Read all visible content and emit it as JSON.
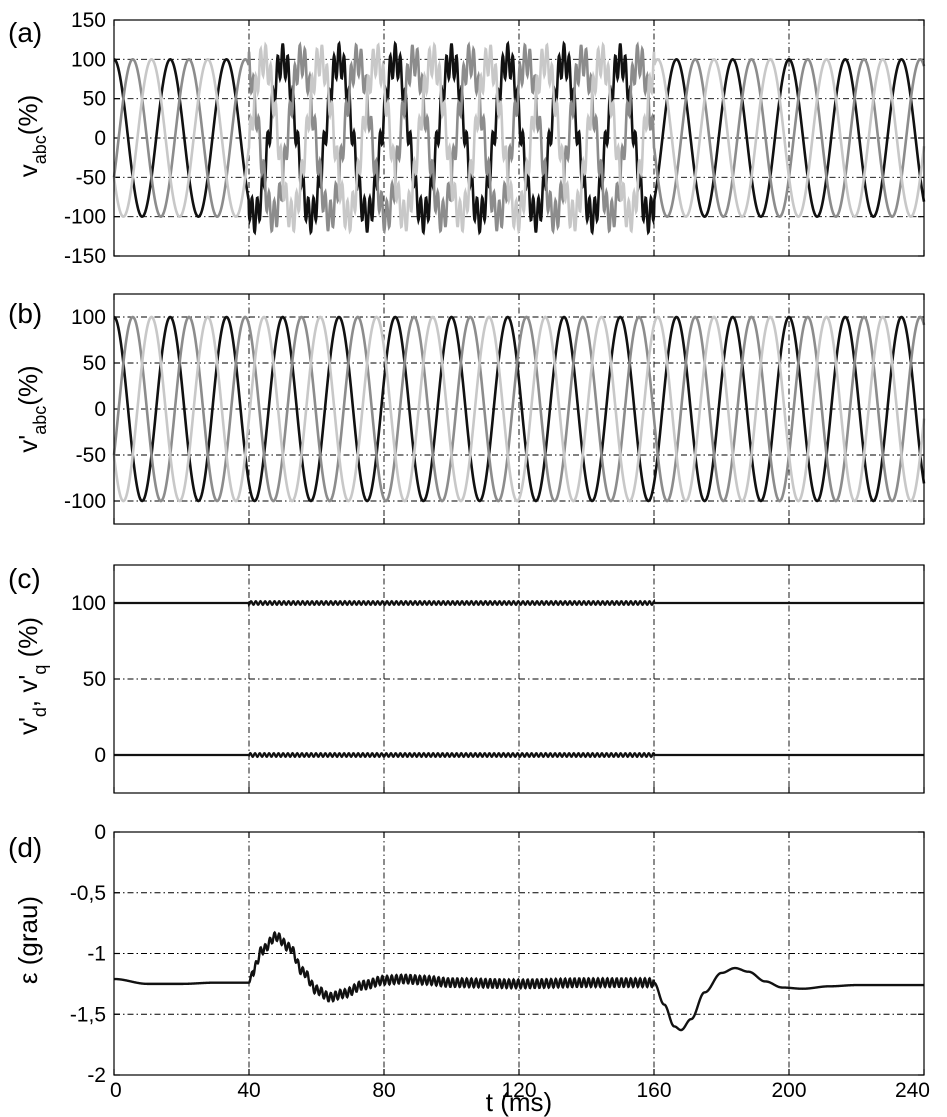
{
  "chart_data": [
    {
      "panel": "(a)",
      "type": "line",
      "ylabel_main": "v",
      "ylabel_sub": "abc",
      "ylabel_suffix": "(%)",
      "xlim": [
        0,
        240
      ],
      "ylim": [
        -150,
        150
      ],
      "yticks": [
        -150,
        -100,
        -50,
        0,
        50,
        100,
        150
      ],
      "ytick_labels": [
        "-150",
        "-100",
        "-50",
        "0",
        "50",
        "100",
        "150"
      ],
      "xticks": [
        0,
        40,
        80,
        120,
        160,
        200,
        240
      ],
      "grid": true,
      "frequency_hz": 60,
      "amplitude_pct": 100,
      "disturbance_interval_ms": [
        40,
        160
      ],
      "disturbance_harmonic_order": 11,
      "disturbance_harmonic_amplitude_pct": 20,
      "series": [
        {
          "phase_deg": 90,
          "color": "#111111"
        },
        {
          "phase_deg": -30,
          "color": "#8c8c8c"
        },
        {
          "phase_deg": 210,
          "color": "#c8c8c8"
        }
      ]
    },
    {
      "panel": "(b)",
      "type": "line",
      "ylabel_main": "v'",
      "ylabel_sub": "abc",
      "ylabel_suffix": "(%)",
      "xlim": [
        0,
        240
      ],
      "ylim": [
        -125,
        125
      ],
      "yticks": [
        -100,
        -50,
        0,
        50,
        100
      ],
      "ytick_labels": [
        "-100",
        "-50",
        "0",
        "50",
        "100"
      ],
      "xticks": [
        0,
        40,
        80,
        120,
        160,
        200,
        240
      ],
      "grid": true,
      "frequency_hz": 60,
      "amplitude_pct": 100,
      "series": [
        {
          "phase_deg": 90,
          "color": "#111111"
        },
        {
          "phase_deg": -30,
          "color": "#8c8c8c"
        },
        {
          "phase_deg": 210,
          "color": "#c8c8c8"
        }
      ]
    },
    {
      "panel": "(c)",
      "type": "line",
      "ylabel_main": "v'",
      "ylabel_sub": "d",
      "ylabel_mid": ", v'",
      "ylabel_sub2": "q",
      "ylabel_suffix": " (%)",
      "xlim": [
        0,
        240
      ],
      "ylim": [
        -25,
        125
      ],
      "yticks": [
        0,
        50,
        100
      ],
      "ytick_labels": [
        "0",
        "50",
        "100"
      ],
      "xticks": [
        0,
        40,
        80,
        120,
        160,
        200,
        240
      ],
      "grid": true,
      "series": [
        {
          "name": "v'd",
          "steady_value": 100,
          "ripple_amplitude": 1.2,
          "ripple_interval_ms": [
            40,
            160
          ],
          "color": "#111111"
        },
        {
          "name": "v'q",
          "steady_value": 0,
          "ripple_amplitude": 1.2,
          "ripple_interval_ms": [
            40,
            160
          ],
          "color": "#111111"
        }
      ]
    },
    {
      "panel": "(d)",
      "type": "line",
      "ylabel_main": "ε (grau)",
      "xlabel": "t (ms)",
      "xlim": [
        0,
        240
      ],
      "ylim": [
        -2,
        0
      ],
      "yticks": [
        -2,
        -1.5,
        -1,
        -0.5,
        0
      ],
      "ytick_labels": [
        "-2",
        "-1,5",
        "-1",
        "-0,5",
        "0"
      ],
      "xticks": [
        0,
        40,
        80,
        120,
        160,
        200,
        240
      ],
      "xtick_labels": [
        "0",
        "40",
        "80",
        "120",
        "160",
        "200",
        "240"
      ],
      "grid": true,
      "series": [
        {
          "color": "#111111",
          "ripple_interval_ms": [
            40,
            160
          ],
          "points": [
            [
              0,
              -1.21
            ],
            [
              10,
              -1.25
            ],
            [
              20,
              -1.25
            ],
            [
              30,
              -1.24
            ],
            [
              40,
              -1.24
            ],
            [
              41,
              -1.15
            ],
            [
              44,
              -0.97
            ],
            [
              48,
              -0.86
            ],
            [
              52,
              -0.95
            ],
            [
              56,
              -1.15
            ],
            [
              60,
              -1.3
            ],
            [
              64,
              -1.36
            ],
            [
              68,
              -1.33
            ],
            [
              74,
              -1.26
            ],
            [
              80,
              -1.22
            ],
            [
              86,
              -1.21
            ],
            [
              92,
              -1.22
            ],
            [
              100,
              -1.24
            ],
            [
              120,
              -1.25
            ],
            [
              140,
              -1.24
            ],
            [
              160,
              -1.24
            ],
            [
              163,
              -1.42
            ],
            [
              166,
              -1.6
            ],
            [
              168,
              -1.63
            ],
            [
              171,
              -1.54
            ],
            [
              175,
              -1.32
            ],
            [
              180,
              -1.16
            ],
            [
              184,
              -1.12
            ],
            [
              188,
              -1.15
            ],
            [
              193,
              -1.23
            ],
            [
              198,
              -1.28
            ],
            [
              204,
              -1.29
            ],
            [
              212,
              -1.27
            ],
            [
              220,
              -1.26
            ],
            [
              240,
              -1.26
            ]
          ]
        }
      ]
    }
  ]
}
